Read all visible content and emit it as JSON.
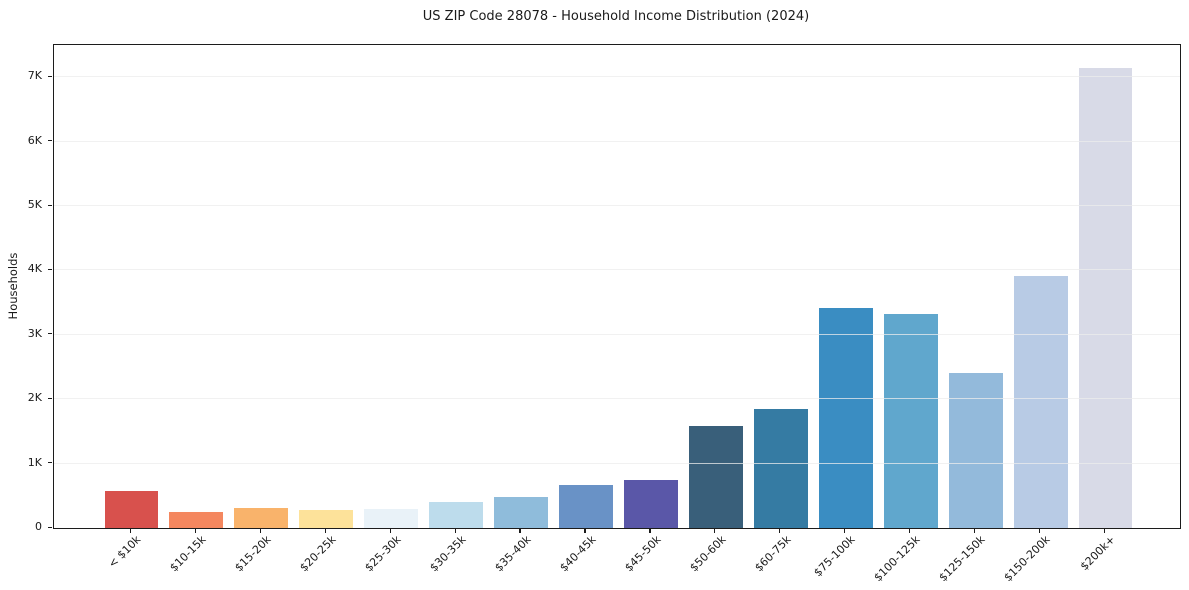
{
  "title": "US ZIP Code 28078 - Household Income Distribution (2024)",
  "chart_data": {
    "type": "bar",
    "title": "US ZIP Code 28078 - Household Income Distribution (2024)",
    "xlabel": "",
    "ylabel": "Households",
    "categories": [
      "< $10k",
      "$10-15k",
      "$15-20k",
      "$20-25k",
      "$25-30k",
      "$30-35k",
      "$35-40k",
      "$40-45k",
      "$45-50k",
      "$50-60k",
      "$60-75k",
      "$75-100k",
      "$100-125k",
      "$125-150k",
      "$150-200k",
      "$200k+"
    ],
    "values": [
      570,
      250,
      310,
      280,
      295,
      405,
      485,
      675,
      750,
      1590,
      1850,
      3420,
      3330,
      2410,
      3910,
      7150
    ],
    "bar_colors": [
      "#d8514d",
      "#f4875f",
      "#f9b36b",
      "#fde29a",
      "#e9f2f8",
      "#bddcec",
      "#8fbcdb",
      "#6992c6",
      "#5a57a8",
      "#395f7a",
      "#357ba3",
      "#3a8dc2",
      "#60a7cd",
      "#93badb",
      "#b8cbe5",
      "#d8dae7"
    ],
    "ylim": [
      0,
      7500
    ],
    "yticks": [
      0,
      1000,
      2000,
      3000,
      4000,
      5000,
      6000,
      7000
    ],
    "ytick_labels": [
      "0",
      "1K",
      "2K",
      "3K",
      "4K",
      "5K",
      "6K",
      "7K"
    ],
    "grid": "horizontal",
    "grid_color": "#ececec",
    "axis_color": "#1c1c1c",
    "background": "#ffffff",
    "legend": "none"
  }
}
